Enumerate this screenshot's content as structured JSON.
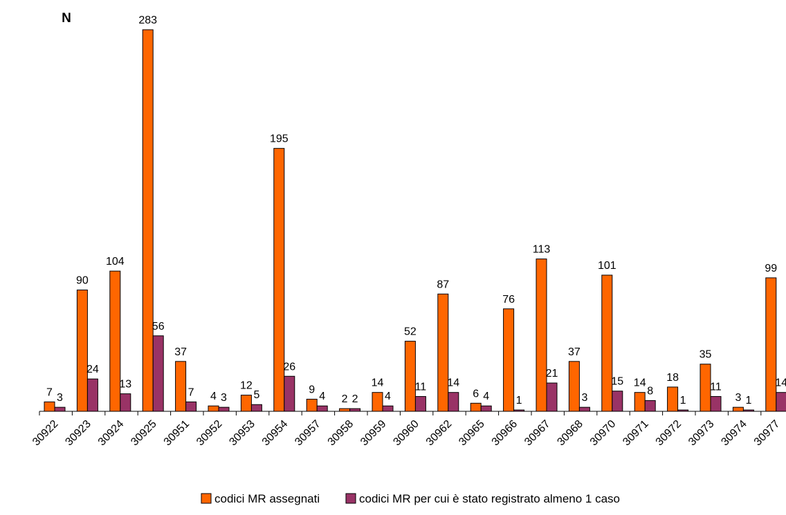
{
  "chart_data": {
    "type": "bar",
    "ylabel": "N",
    "categories": [
      "30922",
      "30923",
      "30924",
      "30925",
      "30951",
      "30952",
      "30953",
      "30954",
      "30957",
      "30958",
      "30959",
      "30960",
      "30962",
      "30965",
      "30966",
      "30967",
      "30968",
      "30970",
      "30971",
      "30972",
      "30973",
      "30974",
      "30977"
    ],
    "series": [
      {
        "name": "codici MR assegnati",
        "color": "#ff6600",
        "values": [
          7,
          90,
          104,
          283,
          37,
          4,
          12,
          195,
          9,
          2,
          14,
          52,
          87,
          6,
          76,
          113,
          37,
          101,
          14,
          18,
          35,
          3,
          99
        ]
      },
      {
        "name": "codici MR per cui è stato registrato almeno 1 caso",
        "color": "#993366",
        "values": [
          3,
          24,
          13,
          56,
          7,
          3,
          5,
          26,
          4,
          2,
          4,
          11,
          14,
          4,
          1,
          21,
          3,
          15,
          8,
          1,
          11,
          1,
          14
        ]
      }
    ],
    "ylim": [
      0,
      283
    ],
    "grid": false,
    "legend_position": "bottom"
  }
}
